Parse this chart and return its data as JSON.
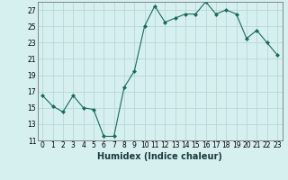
{
  "x": [
    0,
    1,
    2,
    3,
    4,
    5,
    6,
    7,
    8,
    9,
    10,
    11,
    12,
    13,
    14,
    15,
    16,
    17,
    18,
    19,
    20,
    21,
    22,
    23
  ],
  "y": [
    16.5,
    15.2,
    14.5,
    16.5,
    15.0,
    14.8,
    11.5,
    11.5,
    17.5,
    19.5,
    25.0,
    27.5,
    25.5,
    26.0,
    26.5,
    26.5,
    28.0,
    26.5,
    27.0,
    26.5,
    23.5,
    24.5,
    23.0,
    21.5
  ],
  "line_color": "#1a6b5a",
  "marker": "D",
  "marker_size": 2,
  "bg_color": "#d6efef",
  "grid_color": "#b8d8d8",
  "xlabel": "Humidex (Indice chaleur)",
  "xlim": [
    -0.5,
    23.5
  ],
  "ylim": [
    11,
    28
  ],
  "yticks": [
    11,
    13,
    15,
    17,
    19,
    21,
    23,
    25,
    27
  ],
  "xticks": [
    0,
    1,
    2,
    3,
    4,
    5,
    6,
    7,
    8,
    9,
    10,
    11,
    12,
    13,
    14,
    15,
    16,
    17,
    18,
    19,
    20,
    21,
    22,
    23
  ],
  "tick_fontsize": 5.5,
  "xlabel_fontsize": 7
}
